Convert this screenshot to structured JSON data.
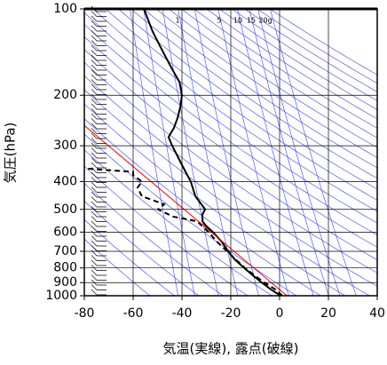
{
  "chart_data": {
    "type": "line",
    "x_label": "気温(実線), 露点(破線)",
    "y_label": "気圧(hPa)",
    "annotations": [
      "1",
      "5",
      "10",
      "15",
      "20g"
    ],
    "xlim": [
      -80,
      40
    ],
    "xticks": [
      -80,
      -60,
      -40,
      -20,
      0,
      20,
      40
    ],
    "ylim": [
      1000,
      100
    ],
    "yticks": [
      100,
      200,
      300,
      400,
      500,
      600,
      700,
      800,
      900,
      1000
    ],
    "log_scale_y": true,
    "grid": true,
    "series": [
      {
        "color": "#000000",
        "style": "solid",
        "x": [
          0.4,
          -3.6,
          -7.3,
          -10.9,
          -14.5,
          -18.2,
          -21.1,
          -23.6,
          -27.3,
          -30.2,
          -31.6,
          -31.6,
          -30.5,
          -34.5,
          -36.4,
          -40,
          -44,
          -45.5,
          -43.3,
          -41.8,
          -40.7,
          -40,
          -41,
          -44.4,
          -48,
          -52,
          -55.6
        ],
        "values": [
          1000,
          950,
          900,
          850,
          800,
          750,
          700,
          650,
          600,
          570,
          550,
          520,
          500,
          450,
          400,
          350,
          300,
          280,
          260,
          240,
          220,
          200,
          180,
          160,
          140,
          120,
          100
        ]
      },
      {
        "color": "#000000",
        "style": "dashed",
        "x": [
          1.1,
          -1.8,
          -6.2,
          -10.2,
          -14.2,
          -17.8,
          -21.5,
          -25.5,
          -29.1,
          -33.8,
          -43.6,
          -49.8,
          -47.3,
          -56.4,
          -58.2,
          -56.4,
          -60,
          -60,
          -80
        ],
        "values": [
          1000,
          950,
          900,
          850,
          800,
          750,
          700,
          650,
          600,
          550,
          530,
          500,
          480,
          450,
          420,
          400,
          380,
          370,
          360
        ]
      },
      {
        "color": "#ff0000",
        "style": "solid",
        "x": [
          3,
          -80
        ],
        "values": [
          1000,
          255
        ]
      }
    ]
  }
}
